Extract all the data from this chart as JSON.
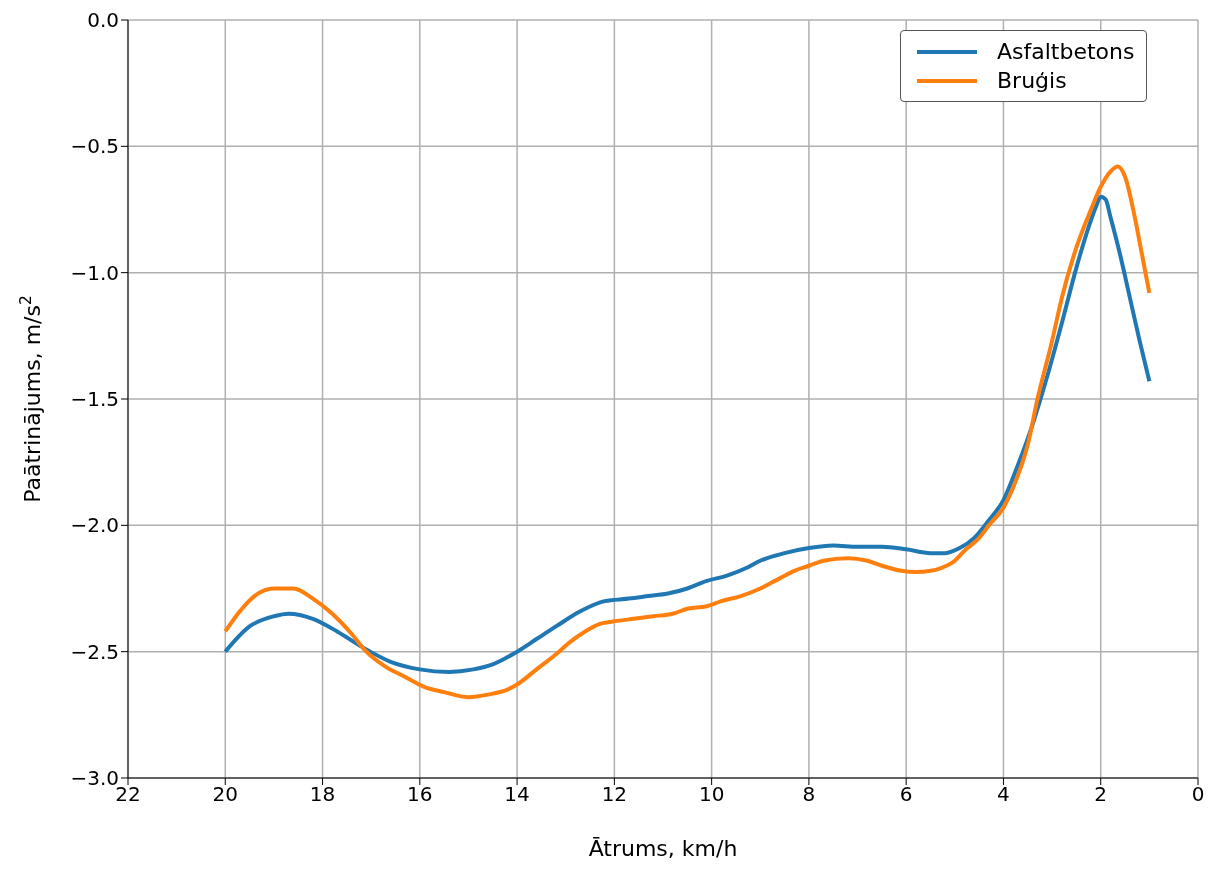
{
  "chart_data": {
    "type": "line",
    "xlabel": "Ātrums, km/h",
    "ylabel": "Paātrinājums, m/s$^{2}$",
    "xlim": [
      22,
      0
    ],
    "xticks": [
      22,
      20,
      18,
      16,
      14,
      12,
      10,
      8,
      6,
      4,
      2,
      0
    ],
    "ylim": [
      -3,
      0
    ],
    "yticks": [
      {
        "value": 0,
        "label": "0.0"
      },
      {
        "value": -0.5,
        "label": "−0.5"
      },
      {
        "value": -1,
        "label": "−1.0"
      },
      {
        "value": -1.5,
        "label": "−1.5"
      },
      {
        "value": -2,
        "label": "−2.0"
      },
      {
        "value": -2.5,
        "label": "−2.5"
      },
      {
        "value": -3,
        "label": "−3.0"
      }
    ],
    "grid": true,
    "legend": "top right",
    "marker": "none",
    "line_style": "solid",
    "series": [
      {
        "name": "Asfaltbetons",
        "color": "#1f77b4",
        "x": [
          20,
          19.5,
          19,
          18.7,
          18.2,
          17.7,
          17.2,
          16.6,
          16,
          15.4,
          14.9,
          14.5,
          14,
          13.6,
          13.2,
          12.7,
          12.2,
          11.7,
          11.3,
          10.9,
          10.5,
          10.1,
          9.7,
          9.3,
          9,
          8.5,
          8,
          7.5,
          7,
          6.5,
          6,
          5.5,
          5.2,
          4.9,
          4.6,
          4.3,
          4,
          3.7,
          3.4,
          3.1,
          2.8,
          2.5,
          2.3,
          2.1,
          2.0,
          1.9,
          1.8,
          1.6,
          1.4,
          1.2,
          1.0
        ],
        "values": [
          -2.5,
          -2.4,
          -2.36,
          -2.35,
          -2.37,
          -2.42,
          -2.48,
          -2.54,
          -2.57,
          -2.58,
          -2.57,
          -2.55,
          -2.5,
          -2.45,
          -2.4,
          -2.34,
          -2.3,
          -2.29,
          -2.28,
          -2.27,
          -2.25,
          -2.22,
          -2.2,
          -2.17,
          -2.14,
          -2.11,
          -2.09,
          -2.08,
          -2.085,
          -2.085,
          -2.095,
          -2.11,
          -2.11,
          -2.09,
          -2.05,
          -1.98,
          -1.9,
          -1.76,
          -1.6,
          -1.41,
          -1.2,
          -0.98,
          -0.85,
          -0.74,
          -0.7,
          -0.71,
          -0.78,
          -0.93,
          -1.1,
          -1.27,
          -1.43
        ]
      },
      {
        "name": "Bruģis",
        "color": "#ff7f0e",
        "x": [
          20,
          19.7,
          19.4,
          19,
          18.6,
          18.2,
          17.8,
          17.4,
          17.1,
          16.7,
          16.3,
          15.9,
          15.5,
          15,
          14.6,
          14.2,
          14,
          13.6,
          13.2,
          12.9,
          12.6,
          12.3,
          12,
          11.6,
          11.2,
          10.8,
          10.5,
          10.1,
          9.8,
          9.4,
          9,
          8.6,
          8.3,
          8,
          7.7,
          7.2,
          6.8,
          6.5,
          6.1,
          5.8,
          5.5,
          5.3,
          5,
          4.8,
          4.5,
          4.3,
          4,
          3.8,
          3.5,
          3.3,
          3,
          2.8,
          2.5,
          2.2,
          2.0,
          1.8,
          1.65,
          1.5,
          1.3,
          1.15,
          1.0
        ],
        "values": [
          -2.42,
          -2.34,
          -2.28,
          -2.25,
          -2.25,
          -2.29,
          -2.35,
          -2.43,
          -2.5,
          -2.56,
          -2.6,
          -2.64,
          -2.66,
          -2.68,
          -2.67,
          -2.65,
          -2.63,
          -2.57,
          -2.51,
          -2.46,
          -2.42,
          -2.39,
          -2.38,
          -2.37,
          -2.36,
          -2.35,
          -2.33,
          -2.32,
          -2.3,
          -2.28,
          -2.25,
          -2.21,
          -2.18,
          -2.16,
          -2.14,
          -2.13,
          -2.14,
          -2.16,
          -2.18,
          -2.185,
          -2.18,
          -2.17,
          -2.14,
          -2.1,
          -2.05,
          -2.0,
          -1.93,
          -1.85,
          -1.68,
          -1.5,
          -1.27,
          -1.1,
          -0.9,
          -0.75,
          -0.66,
          -0.6,
          -0.58,
          -0.62,
          -0.78,
          -0.93,
          -1.08
        ]
      }
    ]
  }
}
